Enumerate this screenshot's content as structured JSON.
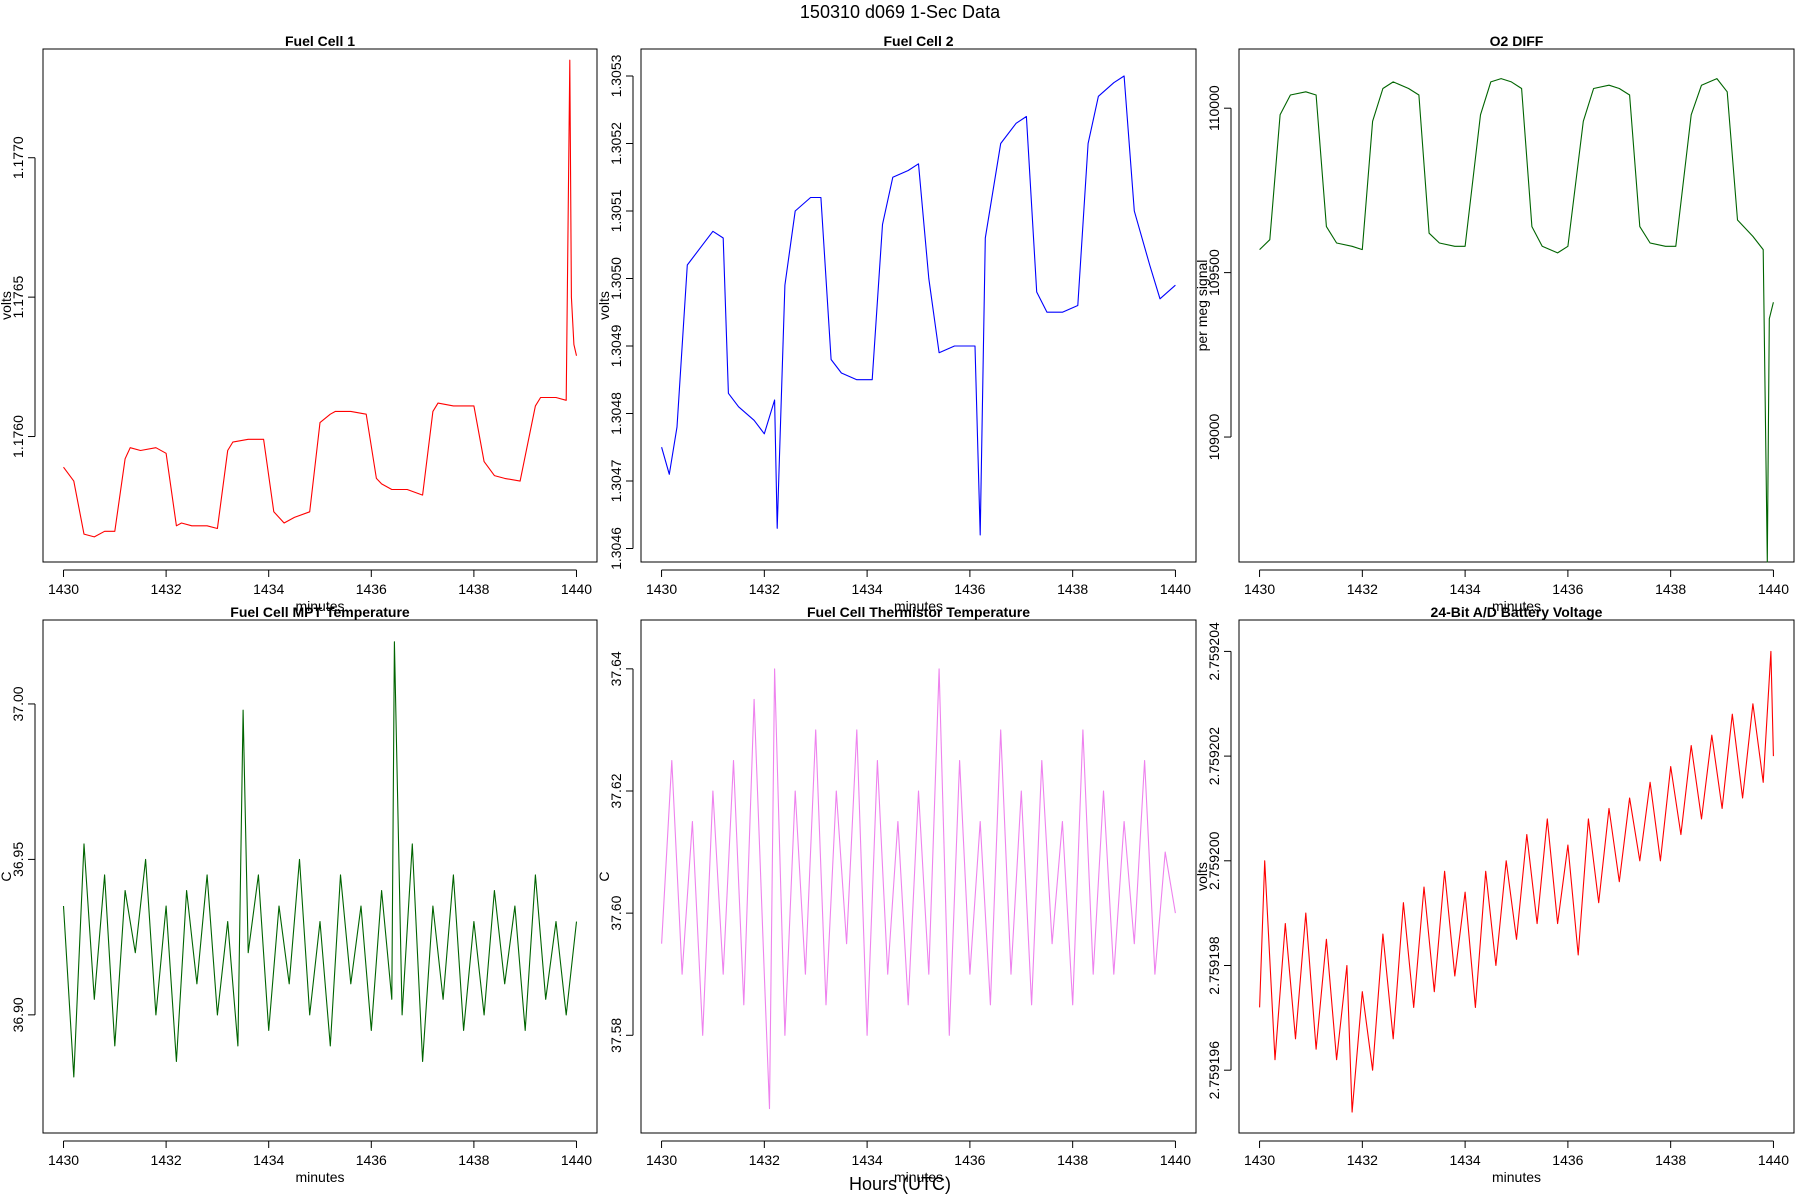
{
  "header": {
    "title": "150310   d069   1-Sec Data"
  },
  "footer": {
    "xlabel": "Hours (UTC)"
  },
  "chart_data": [
    {
      "type": "line",
      "title": "Fuel Cell 1",
      "xlabel": "minutes",
      "ylabel": "volts",
      "color": "#ff0000",
      "xlim": [
        1429.6,
        1440.4
      ],
      "ylim": [
        1.17555,
        1.17739
      ],
      "xticks": [
        1430,
        1432,
        1434,
        1436,
        1438,
        1440
      ],
      "xtick_labels": [
        "1430",
        "1432",
        "1434",
        "1436",
        "1438",
        "1440"
      ],
      "yticks": [
        1.176,
        1.1765,
        1.177
      ],
      "ytick_labels": [
        "1.1760",
        "1.1765",
        "1.1770"
      ],
      "series": [
        {
          "x": [
            1430.0,
            1430.2,
            1430.4,
            1430.6,
            1430.8,
            1431.0,
            1431.2,
            1431.3,
            1431.5,
            1431.8,
            1432.0,
            1432.2,
            1432.3,
            1432.5,
            1432.8,
            1433.0,
            1433.2,
            1433.3,
            1433.6,
            1433.9,
            1434.1,
            1434.3,
            1434.5,
            1434.8,
            1435.0,
            1435.2,
            1435.3,
            1435.6,
            1435.9,
            1436.1,
            1436.2,
            1436.4,
            1436.7,
            1437.0,
            1437.2,
            1437.3,
            1437.6,
            1438.0,
            1438.2,
            1438.4,
            1438.6,
            1438.9,
            1439.2,
            1439.3,
            1439.6,
            1439.8,
            1439.87,
            1439.9,
            1439.95,
            1440.0
          ],
          "y": [
            1.17589,
            1.17584,
            1.17565,
            1.17564,
            1.17566,
            1.17566,
            1.17592,
            1.17596,
            1.17595,
            1.17596,
            1.17594,
            1.17568,
            1.17569,
            1.17568,
            1.17568,
            1.17567,
            1.17595,
            1.17598,
            1.17599,
            1.17599,
            1.17573,
            1.17569,
            1.17571,
            1.17573,
            1.17605,
            1.17608,
            1.17609,
            1.17609,
            1.17608,
            1.17585,
            1.17583,
            1.17581,
            1.17581,
            1.17579,
            1.17609,
            1.17612,
            1.17611,
            1.17611,
            1.17591,
            1.17586,
            1.17585,
            1.17584,
            1.17611,
            1.17614,
            1.17614,
            1.17613,
            1.17735,
            1.1765,
            1.17633,
            1.17629
          ]
        }
      ]
    },
    {
      "type": "line",
      "title": "Fuel Cell 2",
      "xlabel": "minutes",
      "ylabel": "volts",
      "color": "#0000ff",
      "xlim": [
        1429.6,
        1440.4
      ],
      "ylim": [
        1.30458,
        1.30534
      ],
      "xticks": [
        1430,
        1432,
        1434,
        1436,
        1438,
        1440
      ],
      "xtick_labels": [
        "1430",
        "1432",
        "1434",
        "1436",
        "1438",
        "1440"
      ],
      "yticks": [
        1.3046,
        1.3047,
        1.3048,
        1.3049,
        1.305,
        1.3051,
        1.3052,
        1.3053
      ],
      "ytick_labels": [
        "1.3046",
        "1.3047",
        "1.3048",
        "1.3049",
        "1.3050",
        "1.3051",
        "1.3052",
        "1.3053"
      ],
      "series": [
        {
          "x": [
            1430.0,
            1430.15,
            1430.3,
            1430.5,
            1430.8,
            1431.0,
            1431.2,
            1431.3,
            1431.5,
            1431.8,
            1432.0,
            1432.2,
            1432.25,
            1432.4,
            1432.6,
            1432.9,
            1433.1,
            1433.3,
            1433.5,
            1433.8,
            1434.1,
            1434.3,
            1434.5,
            1434.8,
            1435.0,
            1435.2,
            1435.4,
            1435.7,
            1435.9,
            1436.1,
            1436.2,
            1436.3,
            1436.6,
            1436.9,
            1437.1,
            1437.3,
            1437.5,
            1437.8,
            1438.1,
            1438.3,
            1438.5,
            1438.8,
            1439.0,
            1439.2,
            1439.5,
            1439.7,
            1440.0
          ],
          "y": [
            1.30475,
            1.30471,
            1.30478,
            1.30502,
            1.30505,
            1.30507,
            1.30506,
            1.30483,
            1.30481,
            1.30479,
            1.30477,
            1.30482,
            1.30463,
            1.30499,
            1.3051,
            1.30512,
            1.30512,
            1.30488,
            1.30486,
            1.30485,
            1.30485,
            1.30508,
            1.30515,
            1.30516,
            1.30517,
            1.305,
            1.30489,
            1.3049,
            1.3049,
            1.3049,
            1.30462,
            1.30506,
            1.3052,
            1.30523,
            1.30524,
            1.30498,
            1.30495,
            1.30495,
            1.30496,
            1.3052,
            1.30527,
            1.30529,
            1.3053,
            1.3051,
            1.30502,
            1.30497,
            1.30499
          ]
        }
      ]
    },
    {
      "type": "line",
      "title": "O2 DIFF",
      "xlabel": "minutes",
      "ylabel": "per meg signal",
      "color": "#006400",
      "xlim": [
        1429.6,
        1440.4
      ],
      "ylim": [
        108620,
        110180
      ],
      "xticks": [
        1430,
        1432,
        1434,
        1436,
        1438,
        1440
      ],
      "xtick_labels": [
        "1430",
        "1432",
        "1434",
        "1436",
        "1438",
        "1440"
      ],
      "yticks": [
        109000,
        109500,
        110000
      ],
      "ytick_labels": [
        "109000",
        "109500",
        "110000"
      ],
      "series": [
        {
          "x": [
            1430.0,
            1430.2,
            1430.4,
            1430.6,
            1430.9,
            1431.1,
            1431.3,
            1431.5,
            1431.8,
            1432.0,
            1432.2,
            1432.4,
            1432.6,
            1432.9,
            1433.1,
            1433.3,
            1433.5,
            1433.8,
            1434.0,
            1434.3,
            1434.5,
            1434.7,
            1434.9,
            1435.1,
            1435.3,
            1435.5,
            1435.8,
            1436.0,
            1436.3,
            1436.5,
            1436.8,
            1437.0,
            1437.2,
            1437.4,
            1437.6,
            1437.9,
            1438.1,
            1438.4,
            1438.6,
            1438.9,
            1439.1,
            1439.3,
            1439.6,
            1439.8,
            1439.88,
            1439.92,
            1440.0
          ],
          "y": [
            109570,
            109600,
            109980,
            110040,
            110050,
            110040,
            109640,
            109590,
            109580,
            109570,
            109960,
            110060,
            110080,
            110060,
            110040,
            109620,
            109590,
            109580,
            109580,
            109980,
            110080,
            110090,
            110080,
            110060,
            109640,
            109580,
            109560,
            109580,
            109960,
            110060,
            110070,
            110060,
            110040,
            109640,
            109590,
            109580,
            109580,
            109980,
            110070,
            110090,
            110050,
            109660,
            109610,
            109570,
            108620,
            109360,
            109410
          ]
        }
      ]
    },
    {
      "type": "line",
      "title": "Fuel Cell MPT Temperature",
      "xlabel": "minutes",
      "ylabel": "C",
      "color": "#006400",
      "xlim": [
        1429.6,
        1440.4
      ],
      "ylim": [
        36.862,
        37.027
      ],
      "xticks": [
        1430,
        1432,
        1434,
        1436,
        1438,
        1440
      ],
      "xtick_labels": [
        "1430",
        "1432",
        "1434",
        "1436",
        "1438",
        "1440"
      ],
      "yticks": [
        36.9,
        36.95,
        37.0
      ],
      "ytick_labels": [
        "36.90",
        "36.95",
        "37.00"
      ],
      "series": [
        {
          "x": [
            1430.0,
            1430.2,
            1430.4,
            1430.6,
            1430.8,
            1431.0,
            1431.2,
            1431.4,
            1431.6,
            1431.8,
            1432.0,
            1432.2,
            1432.4,
            1432.6,
            1432.8,
            1433.0,
            1433.2,
            1433.4,
            1433.5,
            1433.6,
            1433.8,
            1434.0,
            1434.2,
            1434.4,
            1434.6,
            1434.8,
            1435.0,
            1435.2,
            1435.4,
            1435.6,
            1435.8,
            1436.0,
            1436.2,
            1436.4,
            1436.45,
            1436.6,
            1436.8,
            1437.0,
            1437.2,
            1437.4,
            1437.6,
            1437.8,
            1438.0,
            1438.2,
            1438.4,
            1438.6,
            1438.8,
            1439.0,
            1439.2,
            1439.4,
            1439.6,
            1439.8,
            1440.0
          ],
          "y": [
            36.935,
            36.88,
            36.955,
            36.905,
            36.945,
            36.89,
            36.94,
            36.92,
            36.95,
            36.9,
            36.935,
            36.885,
            36.94,
            36.91,
            36.945,
            36.9,
            36.93,
            36.89,
            36.998,
            36.92,
            36.945,
            36.895,
            36.935,
            36.91,
            36.95,
            36.9,
            36.93,
            36.89,
            36.945,
            36.91,
            36.935,
            36.895,
            36.94,
            36.905,
            37.02,
            36.9,
            36.955,
            36.885,
            36.935,
            36.905,
            36.945,
            36.895,
            36.93,
            36.9,
            36.94,
            36.91,
            36.935,
            36.895,
            36.945,
            36.905,
            36.93,
            36.9,
            36.93
          ]
        }
      ]
    },
    {
      "type": "line",
      "title": "Fuel Cell Thermistor Temperature",
      "xlabel": "minutes",
      "ylabel": "C",
      "color": "#ee82ee",
      "xlim": [
        1429.6,
        1440.4
      ],
      "ylim": [
        37.564,
        37.648
      ],
      "xticks": [
        1430,
        1432,
        1434,
        1436,
        1438,
        1440
      ],
      "xtick_labels": [
        "1430",
        "1432",
        "1434",
        "1436",
        "1438",
        "1440"
      ],
      "yticks": [
        37.58,
        37.6,
        37.62,
        37.64
      ],
      "ytick_labels": [
        "37.58",
        "37.60",
        "37.62",
        "37.64"
      ],
      "series": [
        {
          "x": [
            1430.0,
            1430.2,
            1430.4,
            1430.6,
            1430.8,
            1431.0,
            1431.2,
            1431.4,
            1431.6,
            1431.8,
            1432.0,
            1432.1,
            1432.2,
            1432.4,
            1432.6,
            1432.8,
            1433.0,
            1433.2,
            1433.4,
            1433.6,
            1433.8,
            1434.0,
            1434.2,
            1434.4,
            1434.6,
            1434.8,
            1435.0,
            1435.2,
            1435.4,
            1435.6,
            1435.8,
            1436.0,
            1436.2,
            1436.4,
            1436.6,
            1436.8,
            1437.0,
            1437.2,
            1437.4,
            1437.6,
            1437.8,
            1438.0,
            1438.2,
            1438.4,
            1438.6,
            1438.8,
            1439.0,
            1439.2,
            1439.4,
            1439.6,
            1439.8,
            1440.0
          ],
          "y": [
            37.595,
            37.625,
            37.59,
            37.615,
            37.58,
            37.62,
            37.59,
            37.625,
            37.585,
            37.635,
            37.59,
            37.568,
            37.64,
            37.58,
            37.62,
            37.59,
            37.63,
            37.585,
            37.62,
            37.595,
            37.63,
            37.58,
            37.625,
            37.59,
            37.615,
            37.585,
            37.62,
            37.59,
            37.64,
            37.58,
            37.625,
            37.59,
            37.615,
            37.585,
            37.63,
            37.59,
            37.62,
            37.585,
            37.625,
            37.595,
            37.615,
            37.585,
            37.63,
            37.59,
            37.62,
            37.59,
            37.615,
            37.595,
            37.625,
            37.59,
            37.61,
            37.6
          ]
        }
      ]
    },
    {
      "type": "line",
      "title": "24-Bit A/D Battery Voltage",
      "xlabel": "minutes",
      "ylabel": "volts",
      "color": "#ff0000",
      "xlim": [
        1429.6,
        1440.4
      ],
      "ylim": [
        2.7591948,
        2.7592046
      ],
      "xticks": [
        1430,
        1432,
        1434,
        1436,
        1438,
        1440
      ],
      "xtick_labels": [
        "1430",
        "1432",
        "1434",
        "1436",
        "1438",
        "1440"
      ],
      "yticks": [
        2.759196,
        2.759198,
        2.7592,
        2.759202,
        2.759204
      ],
      "ytick_labels": [
        "2.759196",
        "2.759198",
        "2.759200",
        "2.759202",
        "2.759204"
      ],
      "series": [
        {
          "x": [
            1430.0,
            1430.1,
            1430.3,
            1430.5,
            1430.7,
            1430.9,
            1431.1,
            1431.3,
            1431.5,
            1431.7,
            1431.8,
            1432.0,
            1432.2,
            1432.4,
            1432.6,
            1432.8,
            1433.0,
            1433.2,
            1433.4,
            1433.6,
            1433.8,
            1434.0,
            1434.2,
            1434.4,
            1434.6,
            1434.8,
            1435.0,
            1435.2,
            1435.4,
            1435.6,
            1435.8,
            1436.0,
            1436.2,
            1436.4,
            1436.6,
            1436.8,
            1437.0,
            1437.2,
            1437.4,
            1437.6,
            1437.8,
            1438.0,
            1438.2,
            1438.4,
            1438.6,
            1438.8,
            1439.0,
            1439.2,
            1439.4,
            1439.6,
            1439.8,
            1439.95,
            1440.0
          ],
          "y": [
            2.7591972,
            2.7592,
            2.7591962,
            2.7591988,
            2.7591966,
            2.759199,
            2.7591964,
            2.7591985,
            2.7591962,
            2.759198,
            2.7591952,
            2.7591975,
            2.759196,
            2.7591986,
            2.7591966,
            2.7591992,
            2.7591972,
            2.7591995,
            2.7591975,
            2.7591998,
            2.7591978,
            2.7591994,
            2.7591972,
            2.7591998,
            2.759198,
            2.7592,
            2.7591985,
            2.7592005,
            2.7591988,
            2.7592008,
            2.7591988,
            2.7592003,
            2.7591982,
            2.7592008,
            2.7591992,
            2.759201,
            2.7591996,
            2.7592012,
            2.7592,
            2.7592015,
            2.7592,
            2.7592018,
            2.7592005,
            2.7592022,
            2.7592008,
            2.7592024,
            2.759201,
            2.7592028,
            2.7592012,
            2.759203,
            2.7592015,
            2.759204,
            2.759202
          ]
        }
      ]
    }
  ]
}
